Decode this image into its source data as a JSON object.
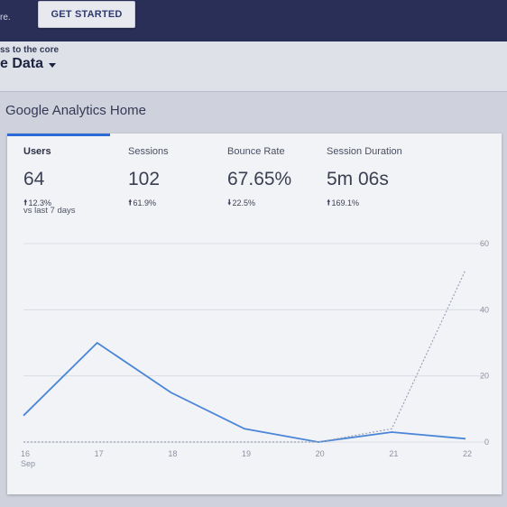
{
  "topbar": {
    "cut_text": "re.",
    "cta_label": "GET STARTED"
  },
  "header": {
    "subtitle": "ss to the core",
    "title": "e Data"
  },
  "page": {
    "heading": "Google Analytics Home"
  },
  "metrics": [
    {
      "label": "Users",
      "value": "64",
      "change": "12.3%",
      "direction": "up"
    },
    {
      "label": "Sessions",
      "value": "102",
      "change": "61.9%",
      "direction": "up"
    },
    {
      "label": "Bounce Rate",
      "value": "67.65%",
      "change": "22.5%",
      "direction": "down"
    },
    {
      "label": "Session Duration",
      "value": "5m 06s",
      "change": "169.1%",
      "direction": "up"
    }
  ],
  "compare_note": "vs last 7 days",
  "chart_data": {
    "type": "line",
    "x": [
      "16",
      "17",
      "18",
      "19",
      "20",
      "21",
      "22"
    ],
    "x_sublabel": "Sep",
    "ylim": [
      0,
      60
    ],
    "yticks": [
      0,
      20,
      40,
      60
    ],
    "grid": true,
    "series": [
      {
        "style": "solid",
        "color": "#4a86d8",
        "values": [
          8,
          30,
          15,
          4,
          0,
          3,
          1
        ]
      },
      {
        "style": "dashed",
        "color": "#9aa2b8",
        "values": [
          0,
          0,
          0,
          0,
          0,
          4,
          52
        ]
      }
    ]
  }
}
